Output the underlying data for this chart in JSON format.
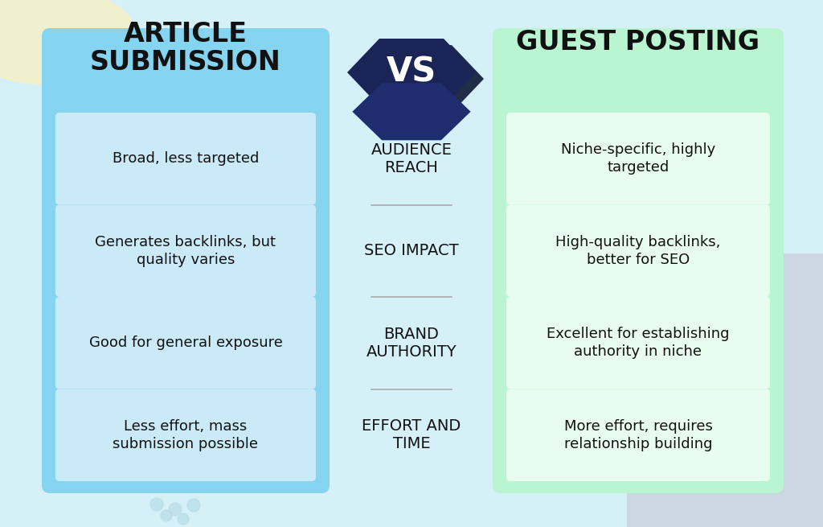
{
  "bg_color": "#d6f0f8",
  "left_panel_color": "#85d4f0",
  "right_panel_color": "#b8f5d0",
  "row_bg_left": "#caeaf8",
  "row_bg_right": "#e8fdf0",
  "left_title": "ARTICLE\nSUBMISSION",
  "right_title": "GUEST POSTING",
  "vs_text": "VS",
  "categories": [
    "AUDIENCE\nREACH",
    "SEO IMPACT",
    "BRAND\nAUTHORITY",
    "EFFORT AND\nTIME"
  ],
  "left_items": [
    "Broad, less targeted",
    "Generates backlinks, but\nquality varies",
    "Good for general exposure",
    "Less effort, mass\nsubmission possible"
  ],
  "right_items": [
    "Niche-specific, highly\ntargeted",
    "High-quality backlinks,\nbetter for SEO",
    "Excellent for establishing\nauthority in niche",
    "More effort, requires\nrelationship building"
  ],
  "title_fontsize": 24,
  "category_fontsize": 14,
  "item_fontsize": 13,
  "vs_fontsize": 30,
  "text_color_dark": "#111111",
  "hexagon_dark": "#1a2456",
  "hexagon_mid": "#1e2d6e",
  "dot_color": "#b8dde8",
  "sep_color": "#aaaaaa",
  "corner_patch_color": "#f5f0d8",
  "corner_patch_color2": "#d0d5e8"
}
